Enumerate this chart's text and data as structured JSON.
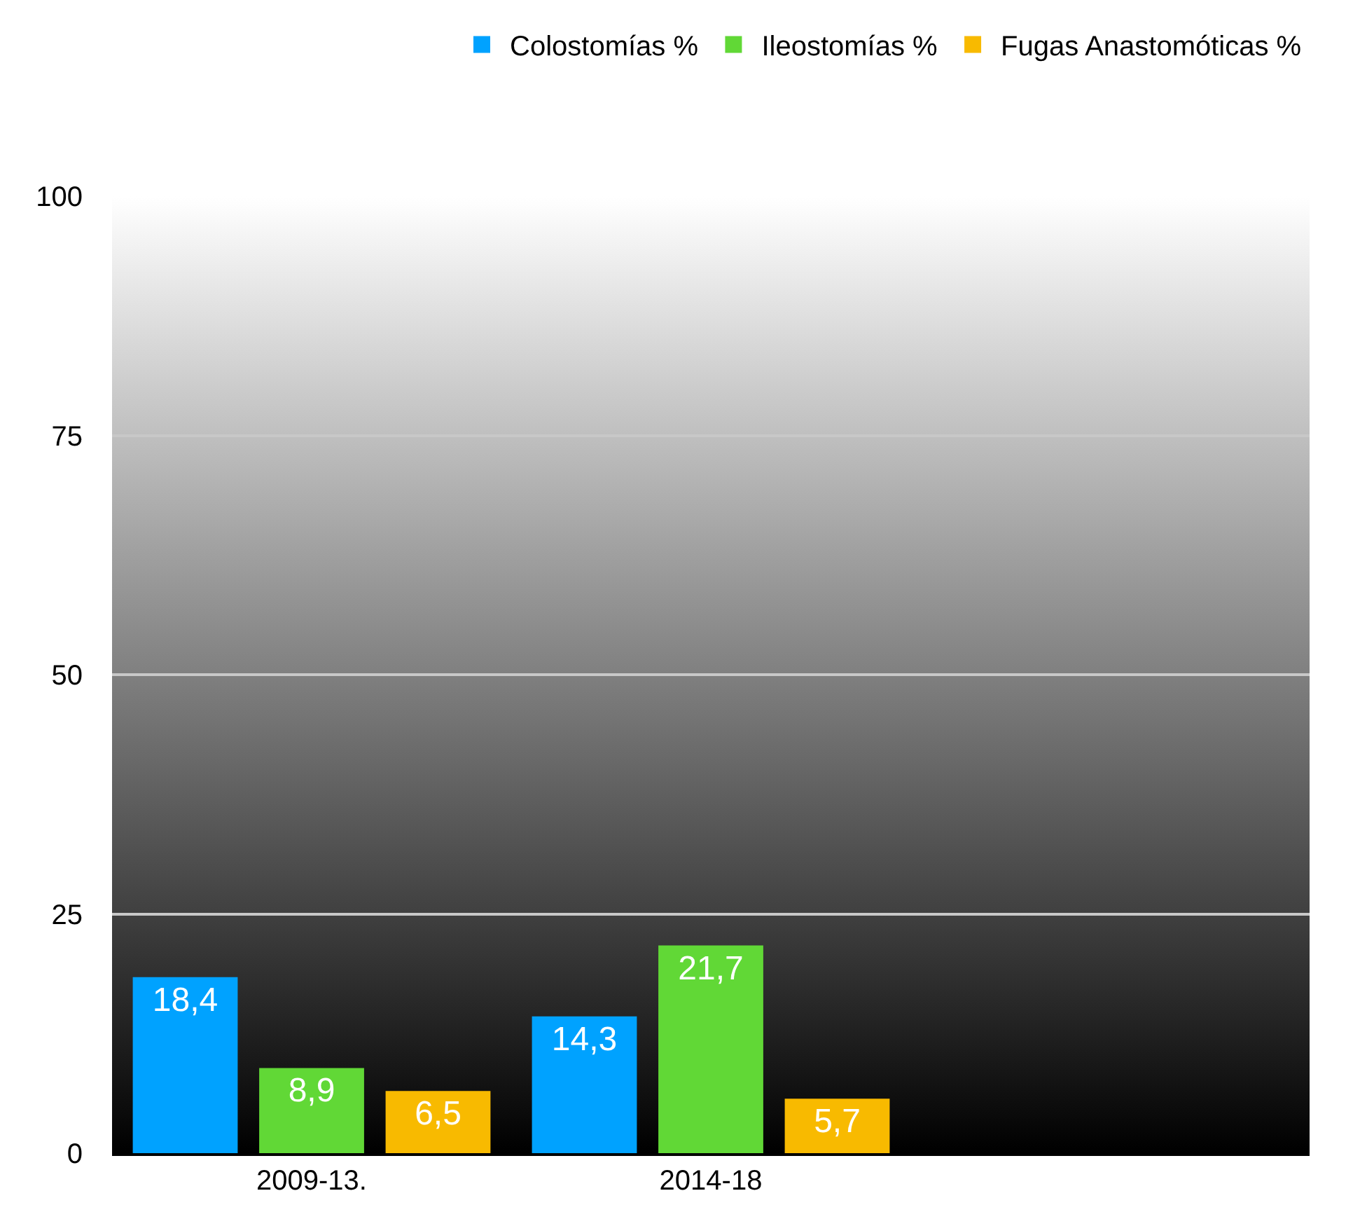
{
  "chart_data": {
    "type": "bar",
    "categories": [
      "2009-13.",
      "2014-18",
      null
    ],
    "series": [
      {
        "name": "Colostomías %",
        "color": "#00a2ff",
        "values": [
          18.4,
          14.3,
          null
        ],
        "value_labels": [
          "18,4",
          "14,3",
          null
        ]
      },
      {
        "name": "Ileostomías %",
        "color": "#61d836",
        "values": [
          8.9,
          21.7,
          null
        ],
        "value_labels": [
          "8,9",
          "21,7",
          null
        ]
      },
      {
        "name": "Fugas Anastomóticas %",
        "color": "#f8ba00",
        "values": [
          6.5,
          5.7,
          null
        ],
        "value_labels": [
          "6,5",
          "5,7",
          null
        ]
      }
    ],
    "ylim": [
      0,
      100
    ],
    "yticks": [
      0,
      25,
      50,
      75,
      100
    ],
    "grid": "y",
    "legend": "top right"
  }
}
